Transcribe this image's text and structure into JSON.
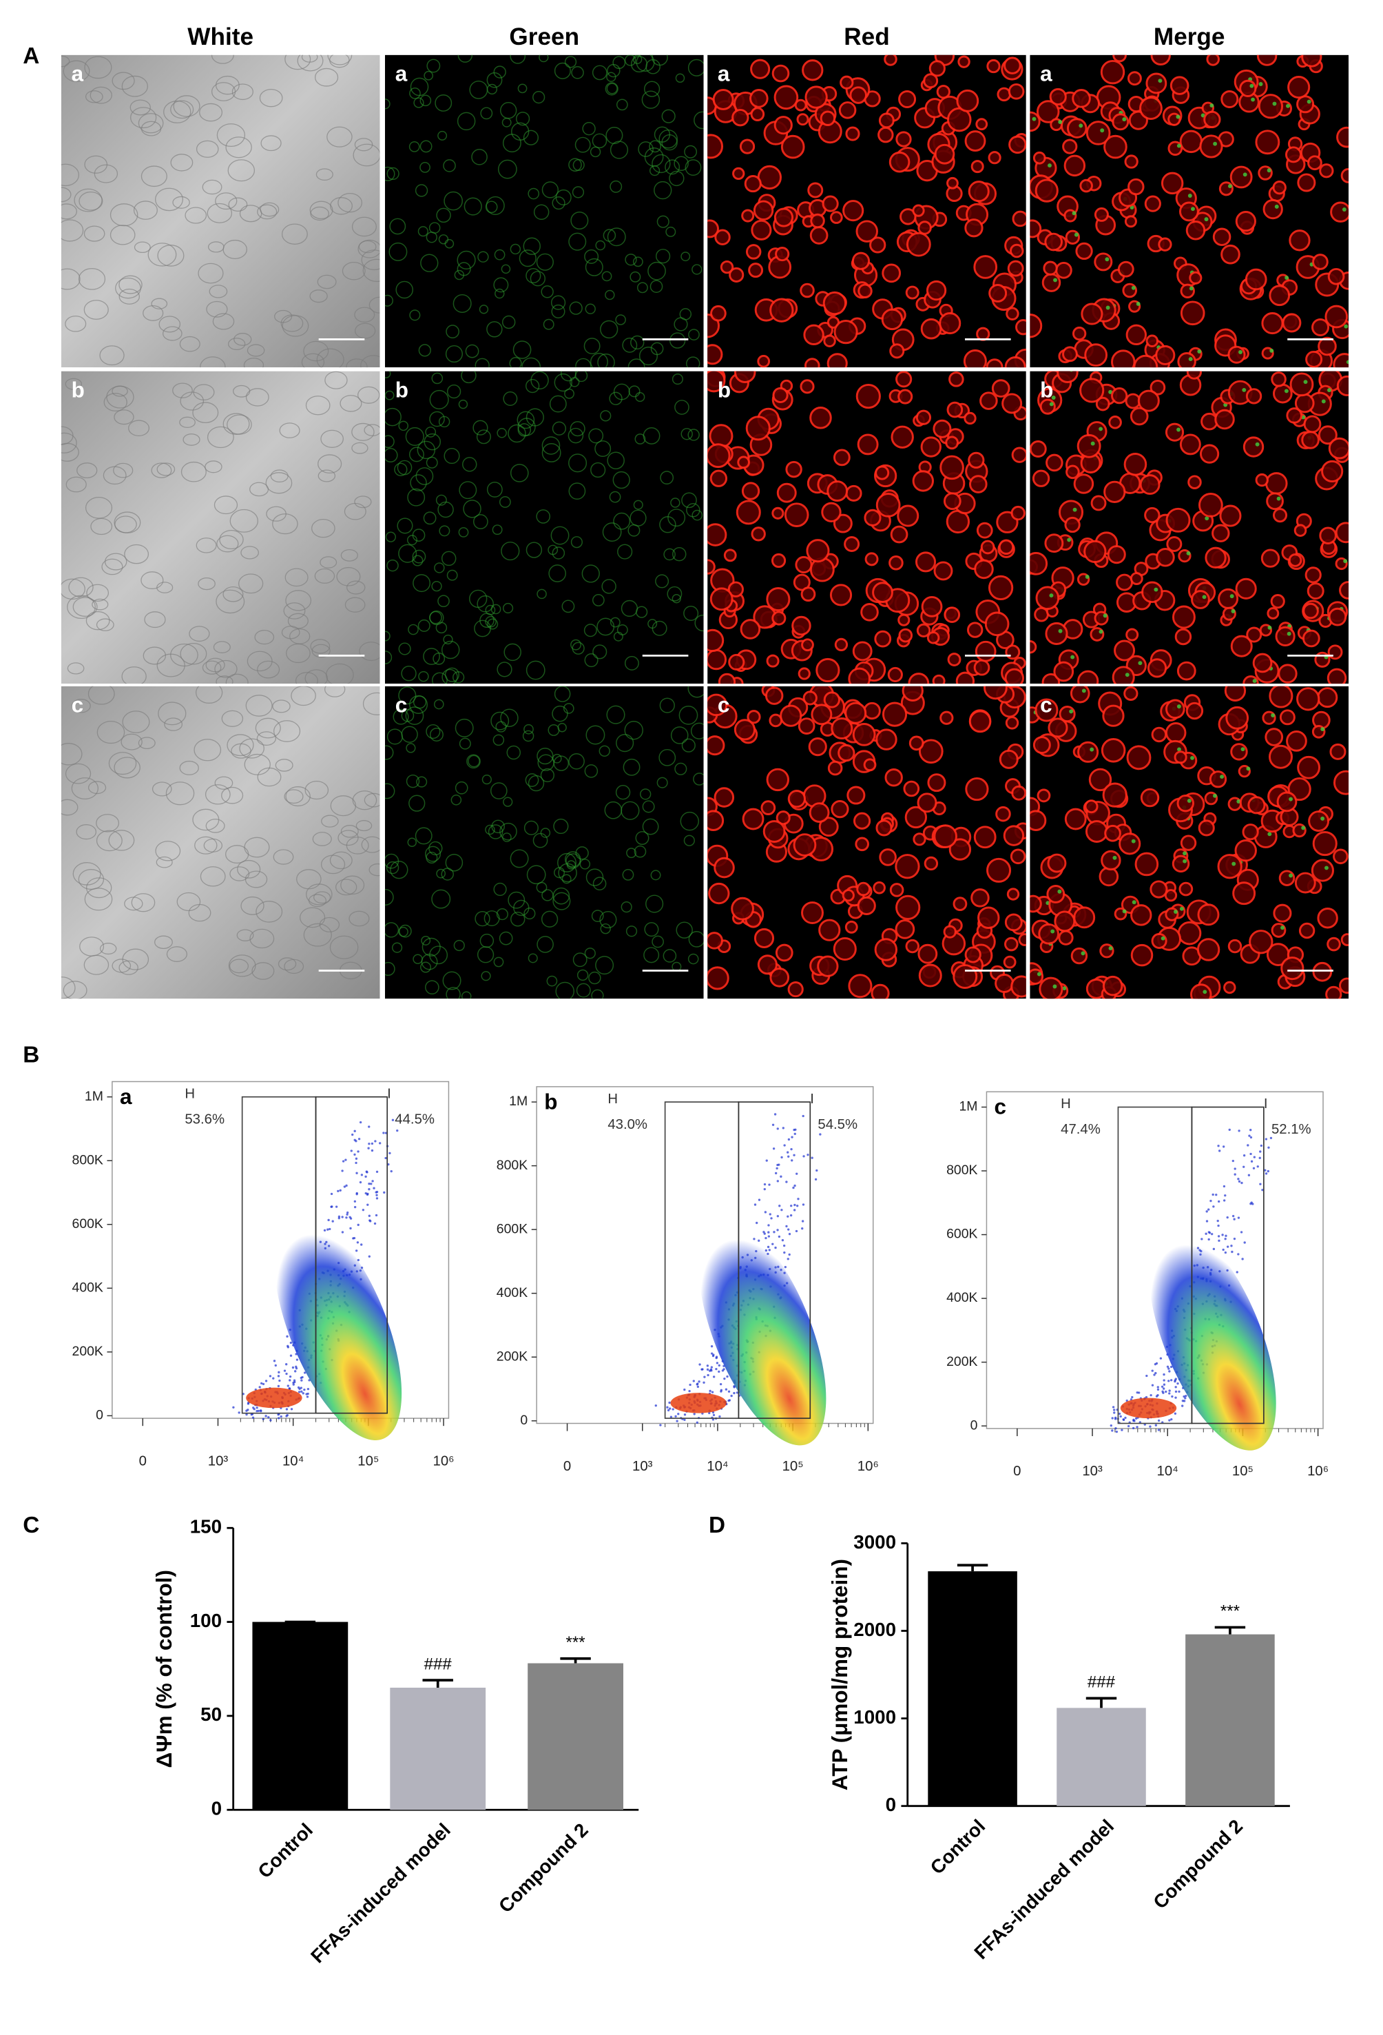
{
  "panel_labels": [
    "A",
    "B",
    "C",
    "D"
  ],
  "micrographs": {
    "columns": [
      "White",
      "Green",
      "Red",
      "Merge"
    ],
    "rows": [
      "a",
      "b",
      "c"
    ]
  },
  "flow_plots": {
    "yticks": [
      0,
      {
        "value": 200000,
        "label": "200K"
      },
      {
        "value": 400000,
        "label": "400K"
      },
      {
        "value": 600000,
        "label": "600K"
      },
      {
        "value": 800000,
        "label": "800K"
      },
      {
        "value": 1000000,
        "label": "1M"
      }
    ],
    "xticks": [
      0,
      {
        "value": 1000,
        "label": "10³"
      },
      {
        "value": 10000,
        "label": "10⁴"
      },
      {
        "value": 100000,
        "label": "10⁵"
      },
      {
        "value": 1000000,
        "label": "10⁶"
      }
    ],
    "log_x": true,
    "plots": [
      {
        "label": "a",
        "gates": [
          {
            "name": "H",
            "percent": "53.6%",
            "x_range": [
              2100,
              20000
            ]
          },
          {
            "name": "I",
            "percent": "44.5%",
            "x_range": [
              20000,
              178000
            ]
          }
        ]
      },
      {
        "label": "b",
        "gates": [
          {
            "name": "H",
            "percent": "43.0%",
            "x_range": [
              2000,
              19000
            ]
          },
          {
            "name": "I",
            "percent": "54.5%",
            "x_range": [
              19000,
              170000
            ]
          }
        ]
      },
      {
        "label": "c",
        "gates": [
          {
            "name": "H",
            "percent": "47.4%",
            "x_range": [
              2200,
              21000
            ]
          },
          {
            "name": "I",
            "percent": "52.1%",
            "x_range": [
              21000,
              190000
            ]
          }
        ]
      }
    ]
  },
  "chart_data": [
    {
      "type": "bar",
      "ylabel": "ΔΨm (% of control)",
      "categories": [
        "Control",
        "FFAs-induced model",
        "Compound 2"
      ],
      "values": [
        100,
        65,
        78
      ],
      "errors": [
        0,
        4,
        2.5
      ],
      "value_annotations": [
        null,
        "###",
        "***"
      ],
      "colors": [
        "#000000",
        "#b3b3bd",
        "#858585"
      ],
      "ylim": [
        0,
        150
      ],
      "yticks": [
        0,
        50,
        100,
        150
      ]
    },
    {
      "type": "bar",
      "ylabel": "ATP (μmol/mg protein)",
      "categories": [
        "Control",
        "FFAs-induced model",
        "Compound 2"
      ],
      "values": [
        2680,
        1120,
        1960
      ],
      "errors": [
        70,
        110,
        80
      ],
      "value_annotations": [
        null,
        "###",
        "***"
      ],
      "colors": [
        "#000000",
        "#b3b3bd",
        "#858585"
      ],
      "ylim": [
        0,
        3000
      ],
      "yticks": [
        0,
        1000,
        2000,
        3000
      ]
    }
  ]
}
